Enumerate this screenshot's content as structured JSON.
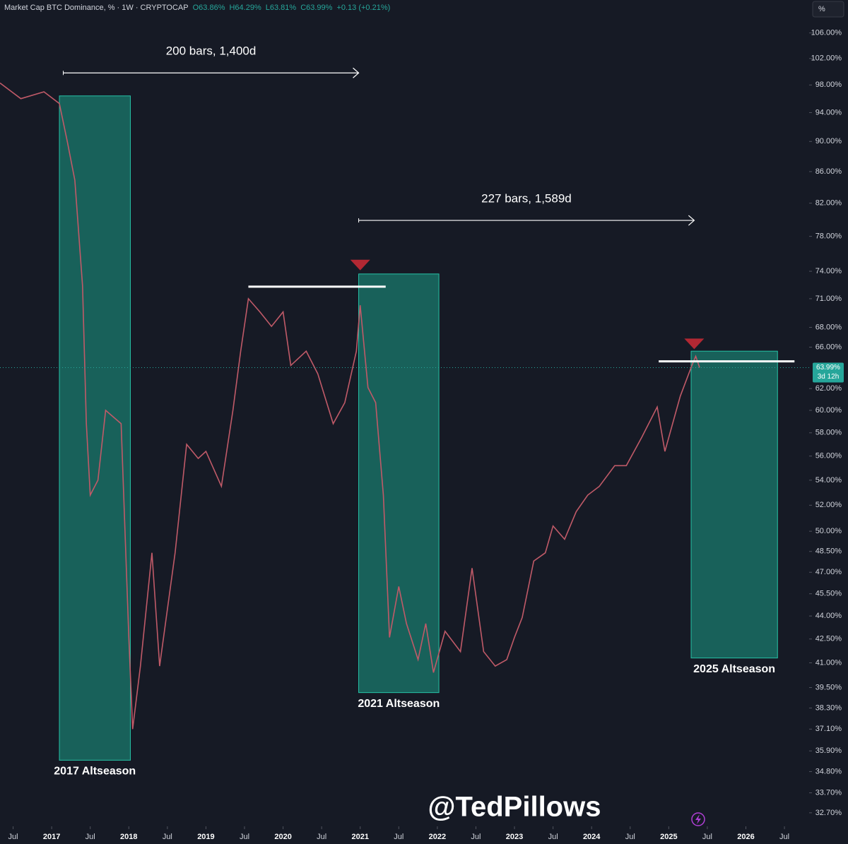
{
  "chart_data": {
    "type": "line",
    "header_title": "Market Cap BTC Dominance, % · 1W · CRYPTOCAP",
    "header_values": [
      "O63.86%",
      "H64.29%",
      "L63.81%",
      "C63.99%",
      "+0.13 (+0.21%)"
    ],
    "scale_button": "%",
    "log_scale": true,
    "grid": false,
    "x": [
      2016.33,
      2016.6,
      2016.9,
      2017.1,
      2017.2,
      2017.3,
      2017.4,
      2017.45,
      2017.5,
      2017.6,
      2017.7,
      2017.9,
      2018.0,
      2018.05,
      2018.15,
      2018.3,
      2018.4,
      2018.6,
      2018.75,
      2018.9,
      2019.0,
      2019.2,
      2019.35,
      2019.45,
      2019.55,
      2019.7,
      2019.85,
      2020.0,
      2020.1,
      2020.3,
      2020.45,
      2020.65,
      2020.8,
      2020.95,
      2021.0,
      2021.1,
      2021.2,
      2021.3,
      2021.38,
      2021.5,
      2021.6,
      2021.75,
      2021.85,
      2021.95,
      2022.1,
      2022.3,
      2022.45,
      2022.6,
      2022.75,
      2022.9,
      2023.0,
      2023.1,
      2023.25,
      2023.4,
      2023.5,
      2023.65,
      2023.8,
      2023.95,
      2024.1,
      2024.3,
      2024.45,
      2024.65,
      2024.85,
      2024.95,
      2025.05,
      2025.15,
      2025.3,
      2025.35,
      2025.4
    ],
    "series": [
      {
        "name": "BTC Dominance",
        "color": "#c05a68",
        "values": [
          98.3,
          96.0,
          97.0,
          95.3,
          90.1,
          84.9,
          72.4,
          58.8,
          52.8,
          54.0,
          60.0,
          58.8,
          42.6,
          37.1,
          40.8,
          48.4,
          40.8,
          48.4,
          57.0,
          55.8,
          56.4,
          53.5,
          60.0,
          65.6,
          71.0,
          69.6,
          68.1,
          69.6,
          64.2,
          65.6,
          63.4,
          58.8,
          60.7,
          65.6,
          70.3,
          62.1,
          60.7,
          52.8,
          42.6,
          46.0,
          43.5,
          41.2,
          43.5,
          40.4,
          43.0,
          41.7,
          47.3,
          41.7,
          40.8,
          41.2,
          42.6,
          43.9,
          47.8,
          48.4,
          50.4,
          49.4,
          51.5,
          52.8,
          53.5,
          55.2,
          55.2,
          57.6,
          60.3,
          56.4,
          58.8,
          61.3,
          64.2,
          65.1,
          63.99
        ]
      }
    ],
    "last_label": "63.99%",
    "countdown": "3d 12h",
    "xlim": [
      2016.33,
      2026.82
    ],
    "ylim": [
      32.04,
      111.4
    ],
    "xticks": [
      {
        "value": 2016.5,
        "label": "Jul"
      },
      2017,
      {
        "value": 2017.5,
        "label": "Jul"
      },
      2018,
      {
        "value": 2018.5,
        "label": "Jul"
      },
      2019,
      {
        "value": 2019.5,
        "label": "Jul"
      },
      2020,
      {
        "value": 2020.5,
        "label": "Jul"
      },
      2021,
      {
        "value": 2021.5,
        "label": "Jul"
      },
      2022,
      {
        "value": 2022.5,
        "label": "Jul"
      },
      2023,
      {
        "value": 2023.5,
        "label": "Jul"
      },
      2024,
      {
        "value": 2024.5,
        "label": "Jul"
      },
      2025,
      {
        "value": 2025.5,
        "label": "Jul"
      },
      2026,
      {
        "value": 2026.5,
        "label": "Jul"
      }
    ],
    "yticks": [
      {
        "value": 106,
        "label": "106.00%"
      },
      {
        "value": 102,
        "label": "102.00%"
      },
      {
        "value": 98,
        "label": "98.00%"
      },
      {
        "value": 94,
        "label": "94.00%"
      },
      {
        "value": 90,
        "label": "90.00%"
      },
      {
        "value": 86,
        "label": "86.00%"
      },
      {
        "value": 82,
        "label": "82.00%"
      },
      {
        "value": 78,
        "label": "78.00%"
      },
      {
        "value": 74,
        "label": "74.00%"
      },
      {
        "value": 71,
        "label": "71.00%"
      },
      {
        "value": 68,
        "label": "68.00%"
      },
      {
        "value": 66,
        "label": "66.00%"
      },
      {
        "value": 62,
        "label": "62.00%"
      },
      {
        "value": 60,
        "label": "60.00%"
      },
      {
        "value": 58,
        "label": "58.00%"
      },
      {
        "value": 56,
        "label": "56.00%"
      },
      {
        "value": 54,
        "label": "54.00%"
      },
      {
        "value": 52,
        "label": "52.00%"
      },
      {
        "value": 50,
        "label": "50.00%"
      },
      {
        "value": 48.5,
        "label": "48.50%"
      },
      {
        "value": 47,
        "label": "47.00%"
      },
      {
        "value": 45.5,
        "label": "45.50%"
      },
      {
        "value": 44,
        "label": "44.00%"
      },
      {
        "value": 42.5,
        "label": "42.50%"
      },
      {
        "value": 41,
        "label": "41.00%"
      },
      {
        "value": 39.5,
        "label": "39.50%"
      },
      {
        "value": 38.3,
        "label": "38.30%"
      },
      {
        "value": 37.1,
        "label": "37.10%"
      },
      {
        "value": 35.9,
        "label": "35.90%"
      },
      {
        "value": 34.8,
        "label": "34.80%"
      },
      {
        "value": 33.7,
        "label": "33.70%"
      },
      {
        "value": 32.7,
        "label": "32.70%"
      }
    ],
    "zones": [
      {
        "label": "2017 Altseason",
        "x": [
          2017.1,
          2018.02
        ],
        "y": [
          35.4,
          96.4
        ]
      },
      {
        "label": "2021 Altseason",
        "x": [
          2020.98,
          2022.02
        ],
        "y": [
          39.2,
          73.7
        ]
      },
      {
        "label": "2025 Altseason",
        "x": [
          2025.29,
          2026.41
        ],
        "y": [
          41.3,
          65.6
        ]
      }
    ],
    "ranges": [
      {
        "label": "200 bars, 1,400d",
        "x": [
          2017.15,
          2020.98
        ],
        "y": 99.8
      },
      {
        "label": "227 bars, 1,589d",
        "x": [
          2020.98,
          2025.33
        ],
        "y": 79.9
      }
    ],
    "levels": [
      {
        "x": [
          2019.55,
          2021.33
        ],
        "y": 72.3
      },
      {
        "x": [
          2024.87,
          2026.63
        ],
        "y": 64.6
      }
    ],
    "tops": [
      {
        "x": 2021.0,
        "y": 74.1
      },
      {
        "x": 2025.33,
        "y": 65.8
      }
    ],
    "watermark": "@TedPillows"
  }
}
